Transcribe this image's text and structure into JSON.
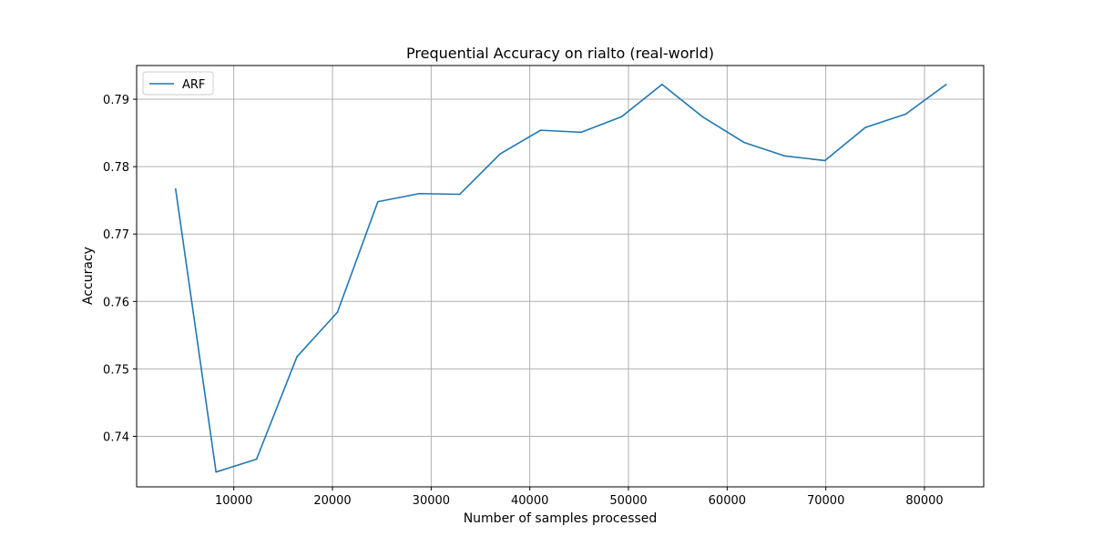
{
  "chart_data": {
    "type": "line",
    "title": "Prequential Accuracy on rialto (real-world)",
    "xlabel": "Number of samples processed",
    "ylabel": "Accuracy",
    "xlim": [
      150,
      86000
    ],
    "ylim": [
      0.7325,
      0.795
    ],
    "xticks": [
      10000,
      20000,
      30000,
      40000,
      50000,
      60000,
      70000,
      80000
    ],
    "xtick_labels": [
      "10000",
      "20000",
      "30000",
      "40000",
      "50000",
      "60000",
      "70000",
      "80000"
    ],
    "yticks": [
      0.74,
      0.75,
      0.76,
      0.77,
      0.78,
      0.79
    ],
    "ytick_labels": [
      "0.74",
      "0.75",
      "0.76",
      "0.77",
      "0.78",
      "0.79"
    ],
    "grid": true,
    "legend_position": "top-left",
    "series": [
      {
        "name": "ARF",
        "color": "#1f77b4",
        "x": [
          4100,
          8200,
          12300,
          16400,
          20500,
          24600,
          28800,
          32900,
          37000,
          41100,
          45200,
          49300,
          53400,
          57500,
          61700,
          65800,
          69900,
          74000,
          78100,
          82200
        ],
        "y": [
          0.7767,
          0.7347,
          0.7366,
          0.7518,
          0.7584,
          0.7748,
          0.776,
          0.7759,
          0.7819,
          0.7854,
          0.7851,
          0.7874,
          0.7922,
          0.7874,
          0.7836,
          0.7816,
          0.7809,
          0.7858,
          0.7878,
          0.7922
        ]
      }
    ]
  }
}
